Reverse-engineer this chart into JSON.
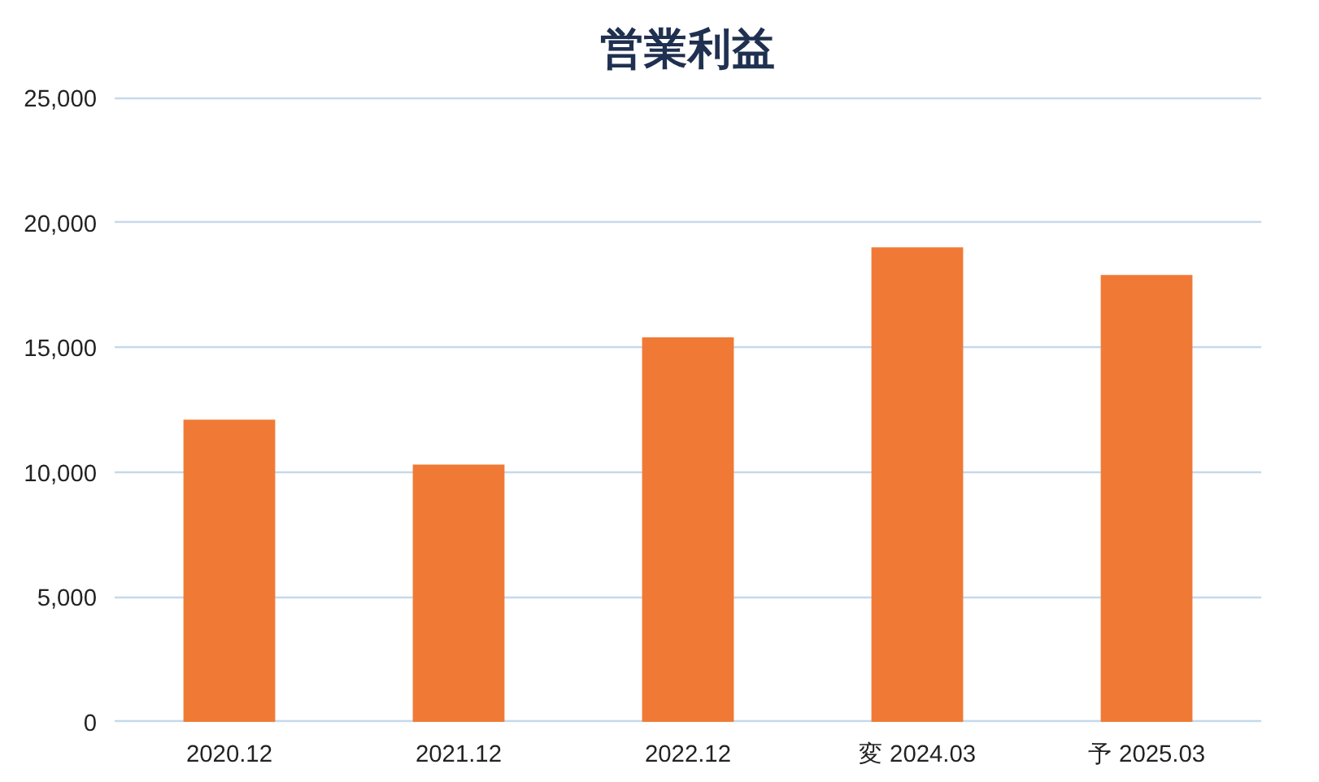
{
  "chart_data": {
    "type": "bar",
    "title": "営業利益",
    "categories": [
      "2020.12",
      "2021.12",
      "2022.12",
      "変 2024.03",
      "予 2025.03"
    ],
    "values": [
      12100,
      10300,
      15400,
      19000,
      17900
    ],
    "color": "#f07a35",
    "ylim": [
      0,
      25000
    ],
    "yticks": [
      {
        "value": 0,
        "label": "0"
      },
      {
        "value": 5000,
        "label": "5,000"
      },
      {
        "value": 10000,
        "label": "10,000"
      },
      {
        "value": 15000,
        "label": "15,000"
      },
      {
        "value": 20000,
        "label": "20,000"
      },
      {
        "value": 25000,
        "label": "25,000"
      }
    ],
    "grid": "y"
  }
}
